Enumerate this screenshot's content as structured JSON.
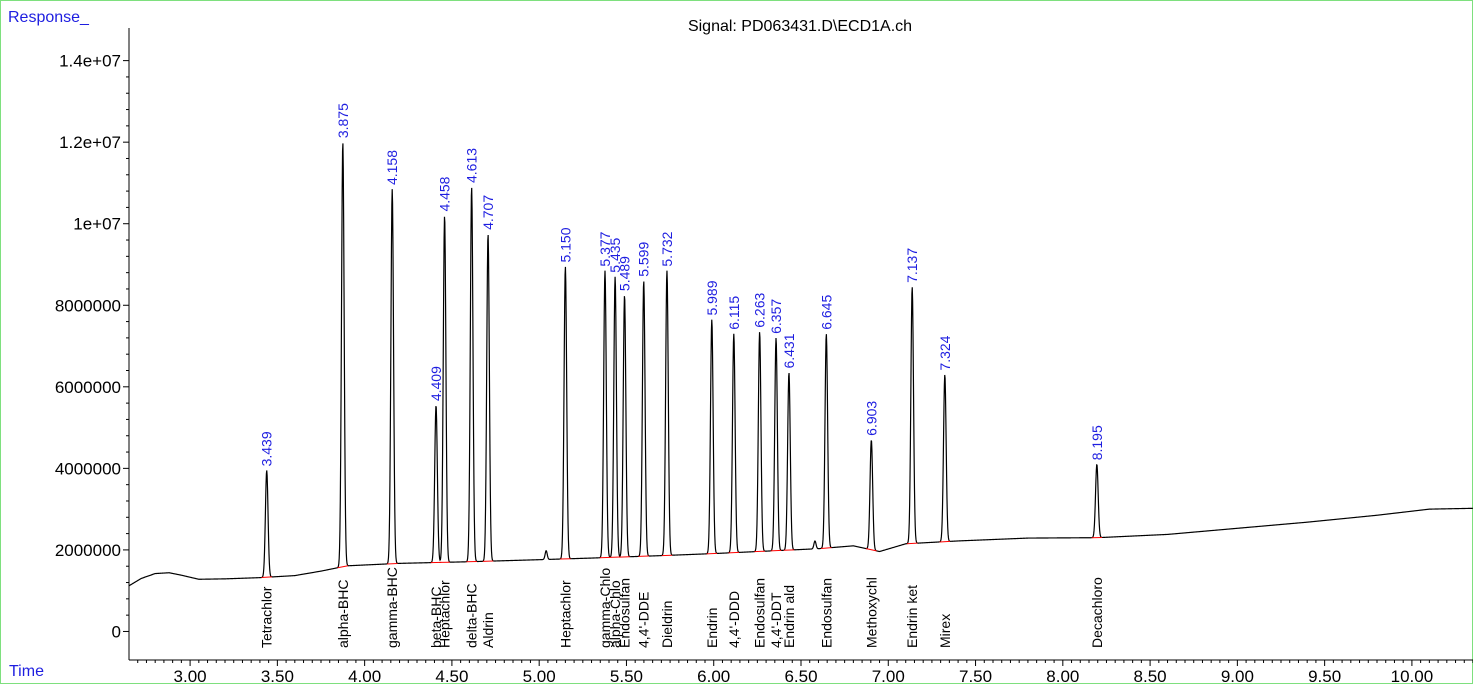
{
  "chart_data": {
    "type": "line",
    "title": "Signal: PD063431.D\\ECD1A.ch",
    "ylabel": "Response_",
    "xlabel": "Time",
    "xlim": [
      2.65,
      10.35
    ],
    "ylim": [
      -700000,
      14800000
    ],
    "x_ticks": [
      3.0,
      3.5,
      4.0,
      4.5,
      5.0,
      5.5,
      6.0,
      6.5,
      7.0,
      7.5,
      8.0,
      8.5,
      9.0,
      9.5,
      10.0
    ],
    "x_tick_labels": [
      "3.00",
      "3.50",
      "4.00",
      "4.50",
      "5.00",
      "5.50",
      "6.00",
      "6.50",
      "7.00",
      "7.50",
      "8.00",
      "8.50",
      "9.00",
      "9.50",
      "10.00"
    ],
    "y_ticks": [
      0,
      2000000,
      4000000,
      6000000,
      8000000,
      10000000,
      12000000,
      14000000
    ],
    "y_tick_labels": [
      "0",
      "2000000",
      "4000000",
      "6000000",
      "8000000",
      "1e+07",
      "1.2e+07",
      "1.4e+07"
    ],
    "baseline": [
      {
        "x": 2.65,
        "y": 1120000
      },
      {
        "x": 2.72,
        "y": 1300000
      },
      {
        "x": 2.8,
        "y": 1420000
      },
      {
        "x": 2.88,
        "y": 1440000
      },
      {
        "x": 2.95,
        "y": 1380000
      },
      {
        "x": 3.05,
        "y": 1280000
      },
      {
        "x": 3.2,
        "y": 1290000
      },
      {
        "x": 3.4,
        "y": 1320000
      },
      {
        "x": 3.6,
        "y": 1370000
      },
      {
        "x": 3.75,
        "y": 1480000
      },
      {
        "x": 3.9,
        "y": 1610000
      },
      {
        "x": 4.2,
        "y": 1670000
      },
      {
        "x": 4.6,
        "y": 1710000
      },
      {
        "x": 5.0,
        "y": 1760000
      },
      {
        "x": 5.3,
        "y": 1800000
      },
      {
        "x": 5.7,
        "y": 1860000
      },
      {
        "x": 6.0,
        "y": 1910000
      },
      {
        "x": 6.3,
        "y": 1970000
      },
      {
        "x": 6.6,
        "y": 2030000
      },
      {
        "x": 6.8,
        "y": 2100000
      },
      {
        "x": 6.95,
        "y": 1960000
      },
      {
        "x": 7.1,
        "y": 2150000
      },
      {
        "x": 7.4,
        "y": 2220000
      },
      {
        "x": 7.8,
        "y": 2290000
      },
      {
        "x": 8.2,
        "y": 2300000
      },
      {
        "x": 8.6,
        "y": 2380000
      },
      {
        "x": 9.0,
        "y": 2530000
      },
      {
        "x": 9.4,
        "y": 2680000
      },
      {
        "x": 9.8,
        "y": 2850000
      },
      {
        "x": 10.1,
        "y": 3000000
      },
      {
        "x": 10.35,
        "y": 3020000
      }
    ],
    "series": [
      {
        "rt": 3.439,
        "rt_label": "3.439",
        "height": 3950000,
        "compound": "Tetrachlor"
      },
      {
        "rt": 3.875,
        "rt_label": "3.875",
        "height": 12000000,
        "compound": "alpha-BHC"
      },
      {
        "rt": 4.158,
        "rt_label": "4.158",
        "height": 10850000,
        "compound": "gamma-BHC"
      },
      {
        "rt": 4.409,
        "rt_label": "4.409",
        "height": 5550000,
        "compound": "beta-BHC"
      },
      {
        "rt": 4.458,
        "rt_label": "4.458",
        "height": 10200000,
        "compound": "Heptachlor"
      },
      {
        "rt": 4.613,
        "rt_label": "4.613",
        "height": 10900000,
        "compound": "delta-BHC"
      },
      {
        "rt": 4.707,
        "rt_label": "4.707",
        "height": 9750000,
        "compound": "Aldrin"
      },
      {
        "rt": 5.15,
        "rt_label": "5.150",
        "height": 8950000,
        "compound": "Heptachlor"
      },
      {
        "rt": 5.377,
        "rt_label": "5.377",
        "height": 8850000,
        "compound": "gamma-Chlo"
      },
      {
        "rt": 5.435,
        "rt_label": "5.435",
        "height": 8700000,
        "compound": "alpha-Chlo"
      },
      {
        "rt": 5.489,
        "rt_label": "5.489",
        "height": 8250000,
        "compound": "Endosulfan"
      },
      {
        "rt": 5.599,
        "rt_label": "5.599",
        "height": 8600000,
        "compound": "4,4'-DDE"
      },
      {
        "rt": 5.732,
        "rt_label": "5.732",
        "height": 8850000,
        "compound": "Dieldrin"
      },
      {
        "rt": 5.989,
        "rt_label": "5.989",
        "height": 7650000,
        "compound": "Endrin"
      },
      {
        "rt": 6.115,
        "rt_label": "6.115",
        "height": 7300000,
        "compound": "4,4'-DDD"
      },
      {
        "rt": 6.263,
        "rt_label": "6.263",
        "height": 7350000,
        "compound": "Endosulfan"
      },
      {
        "rt": 6.357,
        "rt_label": "6.357",
        "height": 7200000,
        "compound": "4,4'-DDT"
      },
      {
        "rt": 6.431,
        "rt_label": "6.431",
        "height": 6350000,
        "compound": "Endrin ald"
      },
      {
        "rt": 6.645,
        "rt_label": "6.645",
        "height": 7300000,
        "compound": "Endosulfan"
      },
      {
        "rt": 6.903,
        "rt_label": "6.903",
        "height": 4700000,
        "compound": "Methoxychl"
      },
      {
        "rt": 7.137,
        "rt_label": "7.137",
        "height": 8450000,
        "compound": "Endrin ket"
      },
      {
        "rt": 7.324,
        "rt_label": "7.324",
        "height": 6300000,
        "compound": "Mirex"
      },
      {
        "rt": 8.195,
        "rt_label": "8.195",
        "height": 4100000,
        "compound": "Decachloro"
      }
    ],
    "minor_peaks": [
      {
        "x": 5.04,
        "y": 1980000
      },
      {
        "x": 6.58,
        "y": 2220000
      }
    ]
  },
  "colors": {
    "frame": "#7ee07e",
    "label_blue": "#1e1ee0",
    "trace": "#000000",
    "baseline_marks": "#ff0000"
  }
}
